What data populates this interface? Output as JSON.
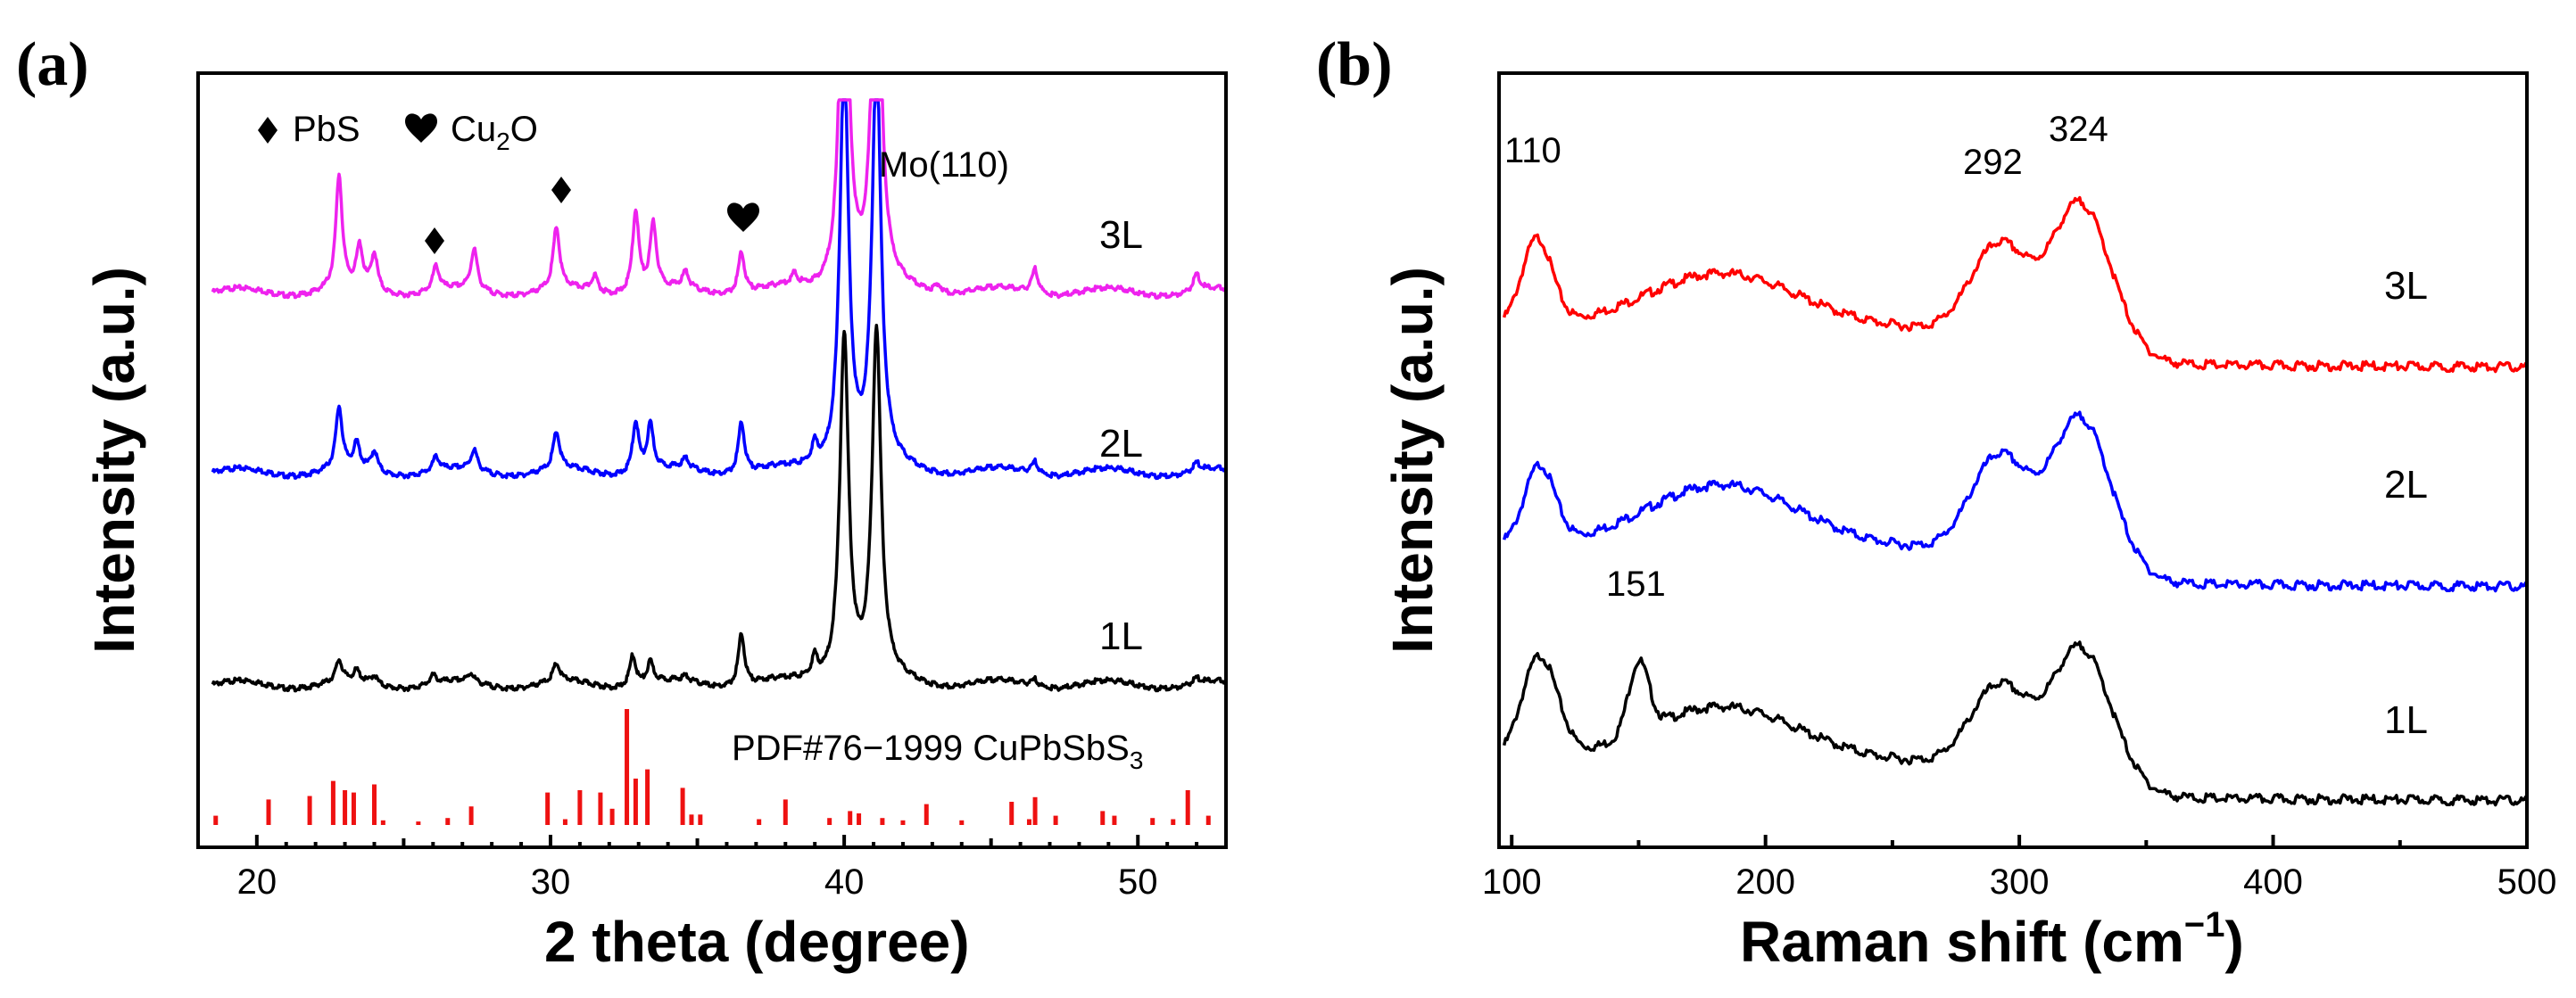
{
  "chart_data": [
    {
      "panel": "(a)",
      "type": "line",
      "xlabel": "2 theta (degree)",
      "ylabel": "Intensity (a.u.)",
      "xlim": [
        18,
        53
      ],
      "xticks": [
        20,
        30,
        40,
        50
      ],
      "legend": {
        "pbs_label": "PbS",
        "cu2o_label": "Cu",
        "cu2o_sub": "2",
        "cu2o_tail": "O"
      },
      "peak_annotation": "Mo(110)",
      "reference_label": "PDF#76−1999 CuPbSbS",
      "reference_sub": "3",
      "series": [
        {
          "name": "1L",
          "color": "#000000",
          "offset": 0.0,
          "scale": 0.85,
          "peaks": [
            [
              22.8,
              0.12
            ],
            [
              23.4,
              0.06
            ],
            [
              24.0,
              0.05
            ],
            [
              26.0,
              0.05
            ],
            [
              27.3,
              0.05
            ],
            [
              30.2,
              0.1
            ],
            [
              32.8,
              0.18
            ],
            [
              33.4,
              0.12
            ],
            [
              34.6,
              0.03
            ],
            [
              36.5,
              0.3
            ],
            [
              39.0,
              0.12
            ],
            [
              40.0,
              2.0
            ],
            [
              41.1,
              2.0
            ],
            [
              46.5,
              0.04
            ],
            [
              52.0,
              0.03
            ]
          ]
        },
        {
          "name": "2L",
          "color": "#0000ff",
          "offset": 0.95,
          "scale": 1.0,
          "peaks": [
            [
              22.8,
              0.3
            ],
            [
              23.4,
              0.12
            ],
            [
              24.0,
              0.1
            ],
            [
              26.1,
              0.07
            ],
            [
              27.4,
              0.1
            ],
            [
              30.2,
              0.18
            ],
            [
              32.9,
              0.25
            ],
            [
              33.4,
              0.22
            ],
            [
              34.6,
              0.05
            ],
            [
              36.5,
              0.25
            ],
            [
              39.0,
              0.1
            ],
            [
              40.0,
              2.0
            ],
            [
              41.1,
              2.0
            ],
            [
              46.5,
              0.06
            ],
            [
              52.0,
              0.04
            ]
          ]
        },
        {
          "name": "3L",
          "color": "#ee22ee",
          "offset": 1.9,
          "scale": 1.0,
          "peaks": [
            [
              22.8,
              0.55
            ],
            [
              23.5,
              0.2
            ],
            [
              24.0,
              0.18
            ],
            [
              26.1,
              0.12
            ],
            [
              27.4,
              0.2
            ],
            [
              30.2,
              0.3
            ],
            [
              31.5,
              0.08
            ],
            [
              32.9,
              0.4
            ],
            [
              33.5,
              0.32
            ],
            [
              34.6,
              0.08
            ],
            [
              36.5,
              0.2
            ],
            [
              38.3,
              0.05
            ],
            [
              40.0,
              2.0
            ],
            [
              41.1,
              2.0
            ],
            [
              43.2,
              0.04
            ],
            [
              46.5,
              0.12
            ],
            [
              52.0,
              0.08
            ]
          ]
        }
      ],
      "reference_sticks": [
        [
          18.6,
          0.08
        ],
        [
          20.4,
          0.22
        ],
        [
          21.8,
          0.25
        ],
        [
          22.6,
          0.38
        ],
        [
          23.0,
          0.3
        ],
        [
          23.3,
          0.28
        ],
        [
          24.0,
          0.35
        ],
        [
          24.3,
          0.04
        ],
        [
          25.5,
          0.03
        ],
        [
          26.5,
          0.06
        ],
        [
          27.3,
          0.16
        ],
        [
          29.9,
          0.28
        ],
        [
          30.5,
          0.05
        ],
        [
          31.0,
          0.3
        ],
        [
          31.7,
          0.28
        ],
        [
          32.1,
          0.14
        ],
        [
          32.6,
          1.0
        ],
        [
          32.9,
          0.4
        ],
        [
          33.3,
          0.48
        ],
        [
          34.5,
          0.32
        ],
        [
          34.8,
          0.09
        ],
        [
          35.1,
          0.09
        ],
        [
          37.1,
          0.05
        ],
        [
          38.0,
          0.22
        ],
        [
          39.5,
          0.06
        ],
        [
          40.2,
          0.12
        ],
        [
          40.5,
          0.1
        ],
        [
          41.3,
          0.06
        ],
        [
          42.0,
          0.04
        ],
        [
          42.8,
          0.18
        ],
        [
          44.0,
          0.04
        ],
        [
          45.7,
          0.2
        ],
        [
          46.3,
          0.05
        ],
        [
          46.5,
          0.24
        ],
        [
          47.2,
          0.08
        ],
        [
          48.8,
          0.12
        ],
        [
          49.2,
          0.08
        ],
        [
          50.5,
          0.06
        ],
        [
          51.2,
          0.05
        ],
        [
          51.7,
          0.3
        ],
        [
          52.4,
          0.08
        ]
      ]
    },
    {
      "panel": "(b)",
      "type": "line",
      "xlabel": "Raman shift (cm",
      "xlabel_sup": "−1",
      "xlabel_tail": ")",
      "ylabel": "Intensity (a.u.)",
      "xlim": [
        95,
        500
      ],
      "xticks": [
        100,
        200,
        300,
        400,
        500
      ],
      "peak_labels": [
        "110",
        "151",
        "292",
        "324"
      ],
      "series": [
        {
          "name": "1L",
          "color": "#000000",
          "offset": 0.0,
          "peaks": [
            [
              111,
              0.65,
              7
            ],
            [
              150,
              0.45,
              4
            ],
            [
              183,
              0.35,
              30
            ],
            [
              292,
              0.5,
              11
            ],
            [
              324,
              0.75,
              11
            ]
          ]
        },
        {
          "name": "2L",
          "color": "#0000ff",
          "offset": 1.35,
          "peaks": [
            [
              111,
              0.5,
              6
            ],
            [
              183,
              0.4,
              30
            ],
            [
              292,
              0.6,
              11
            ],
            [
              324,
              0.85,
              11
            ]
          ]
        },
        {
          "name": "3L",
          "color": "#ff0000",
          "offset": 2.7,
          "peaks": [
            [
              110,
              0.55,
              6
            ],
            [
              183,
              0.35,
              30
            ],
            [
              292,
              0.55,
              11
            ],
            [
              324,
              0.82,
              11
            ]
          ]
        }
      ]
    }
  ]
}
